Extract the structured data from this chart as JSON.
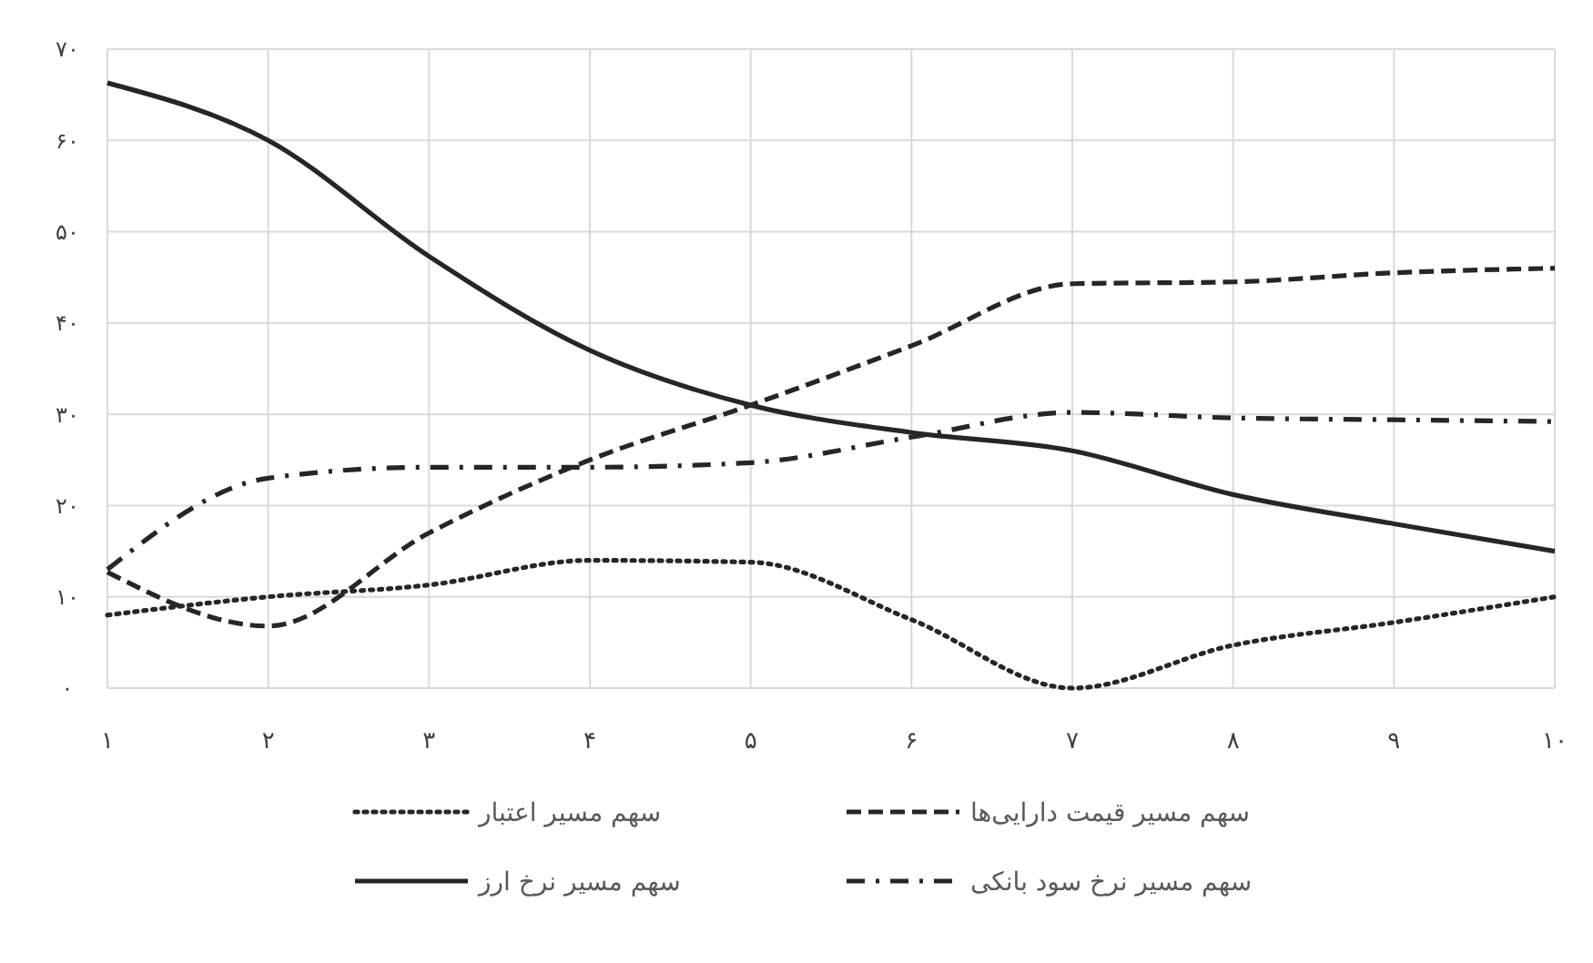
{
  "chart_data": {
    "type": "line",
    "x": [
      1,
      2,
      3,
      4,
      5,
      6,
      7,
      8,
      9,
      10
    ],
    "xlim": [
      1,
      10
    ],
    "xticks": [
      {
        "value": 1,
        "label": "۱"
      },
      {
        "value": 2,
        "label": "۲"
      },
      {
        "value": 3,
        "label": "۳"
      },
      {
        "value": 4,
        "label": "۴"
      },
      {
        "value": 5,
        "label": "۵"
      },
      {
        "value": 6,
        "label": "۶"
      },
      {
        "value": 7,
        "label": "۷"
      },
      {
        "value": 8,
        "label": "۸"
      },
      {
        "value": 9,
        "label": "۹"
      },
      {
        "value": 10,
        "label": "۱۰"
      }
    ],
    "ylim": [
      0,
      70
    ],
    "yticks": [
      {
        "value": 0,
        "label": "۰"
      },
      {
        "value": 10,
        "label": "۱۰"
      },
      {
        "value": 20,
        "label": "۲۰"
      },
      {
        "value": 30,
        "label": "۳۰"
      },
      {
        "value": 40,
        "label": "۴۰"
      },
      {
        "value": 50,
        "label": "۵۰"
      },
      {
        "value": 60,
        "label": "۶۰"
      },
      {
        "value": 70,
        "label": "۷۰"
      }
    ],
    "grid": true,
    "legend": "bottom",
    "marker": "none",
    "series": [
      {
        "name": "سهم مسیر قیمت دارایی‌ها",
        "color": "#262626",
        "line_style": "dashed",
        "values": [
          12.7,
          6.8,
          17,
          25,
          31,
          37.5,
          44.3,
          44.5,
          45.5,
          46
        ]
      },
      {
        "name": "سهم مسیر اعتبار",
        "color": "#262626",
        "line_style": "dotted",
        "values": [
          8,
          10,
          11.3,
          14,
          13.8,
          7.5,
          0,
          4.7,
          7.2,
          10
        ]
      },
      {
        "name": "سهم مسیر نرخ سود بانکی",
        "color": "#262626",
        "line_style": "dashdot",
        "values": [
          13,
          23,
          24.2,
          24.2,
          24.7,
          27.5,
          30.2,
          29.6,
          29.4,
          29.2
        ]
      },
      {
        "name": "سهم مسیر نرخ ارز",
        "color": "#262626",
        "line_style": "solid",
        "values": [
          66.3,
          60,
          47.3,
          37,
          31,
          28,
          26,
          21.2,
          18,
          15
        ]
      }
    ]
  }
}
